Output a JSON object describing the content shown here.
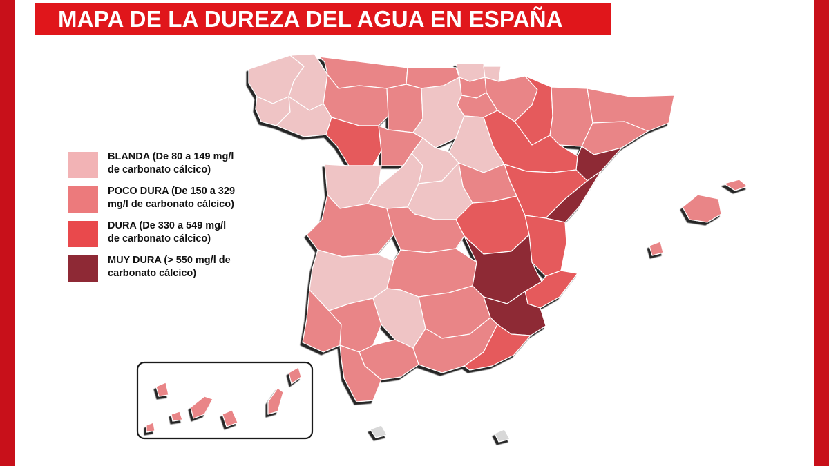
{
  "title": "MAPA DE LA DUREZA DEL AGUA EN ESPAÑA",
  "legend": [
    {
      "label": "BLANDA (De 80 a 149 mg/l\nde carbonato cálcico)",
      "color": "#f2b3b5"
    },
    {
      "label": "POCO DURA (De 150 a 329\nmg/l de carbonato cálcico)",
      "color": "#ec7a7c"
    },
    {
      "label": "DURA (De 330 a 549 mg/l\nde carbonato cálcico)",
      "color": "#e9494c"
    },
    {
      "label": "MUY DURA (> 550 mg/l de\ncarbonato cálcico)",
      "color": "#8e2935"
    }
  ],
  "colors": {
    "frame": "#c8101a",
    "title_bar": "#e0161b",
    "blanda": "#efc4c5",
    "poco_dura": "#e98587",
    "dura": "#e55a5c",
    "muy_dura": "#8e2935",
    "shadow": "#2b2b2b",
    "ceuta_melilla": "#d8d8d8"
  },
  "provinces": [
    {
      "name": "A Coruña",
      "class": "blanda"
    },
    {
      "name": "Lugo",
      "class": "blanda"
    },
    {
      "name": "Pontevedra",
      "class": "blanda"
    },
    {
      "name": "Ourense",
      "class": "blanda"
    },
    {
      "name": "Asturias",
      "class": "poco_dura"
    },
    {
      "name": "Cantabria",
      "class": "poco_dura"
    },
    {
      "name": "Bizkaia",
      "class": "blanda"
    },
    {
      "name": "Gipuzkoa",
      "class": "blanda"
    },
    {
      "name": "Araba/Álava",
      "class": "poco_dura"
    },
    {
      "name": "Navarra",
      "class": "poco_dura"
    },
    {
      "name": "La Rioja",
      "class": "poco_dura"
    },
    {
      "name": "Huesca",
      "class": "dura"
    },
    {
      "name": "Lleida",
      "class": "poco_dura"
    },
    {
      "name": "Girona",
      "class": "poco_dura"
    },
    {
      "name": "Barcelona",
      "class": "poco_dura"
    },
    {
      "name": "Tarragona",
      "class": "muy_dura"
    },
    {
      "name": "Zaragoza",
      "class": "dura"
    },
    {
      "name": "Teruel",
      "class": "dura"
    },
    {
      "name": "Castellón",
      "class": "muy_dura"
    },
    {
      "name": "León",
      "class": "poco_dura"
    },
    {
      "name": "Palencia",
      "class": "poco_dura"
    },
    {
      "name": "Burgos",
      "class": "blanda"
    },
    {
      "name": "Zamora",
      "class": "dura"
    },
    {
      "name": "Valladolid",
      "class": "poco_dura"
    },
    {
      "name": "Soria",
      "class": "blanda"
    },
    {
      "name": "Salamanca",
      "class": "blanda"
    },
    {
      "name": "Ávila",
      "class": "blanda"
    },
    {
      "name": "Segovia",
      "class": "blanda"
    },
    {
      "name": "Guadalajara",
      "class": "poco_dura"
    },
    {
      "name": "Madrid",
      "class": "blanda"
    },
    {
      "name": "Cuenca",
      "class": "dura"
    },
    {
      "name": "Cáceres",
      "class": "poco_dura"
    },
    {
      "name": "Toledo",
      "class": "poco_dura"
    },
    {
      "name": "Valencia",
      "class": "dura"
    },
    {
      "name": "Badajoz",
      "class": "blanda"
    },
    {
      "name": "Ciudad Real",
      "class": "poco_dura"
    },
    {
      "name": "Albacete",
      "class": "muy_dura"
    },
    {
      "name": "Alicante",
      "class": "dura"
    },
    {
      "name": "Huelva",
      "class": "poco_dura"
    },
    {
      "name": "Sevilla",
      "class": "poco_dura"
    },
    {
      "name": "Córdoba",
      "class": "blanda"
    },
    {
      "name": "Jaén",
      "class": "poco_dura"
    },
    {
      "name": "Murcia",
      "class": "muy_dura"
    },
    {
      "name": "Granada",
      "class": "poco_dura"
    },
    {
      "name": "Almería",
      "class": "dura"
    },
    {
      "name": "Málaga",
      "class": "poco_dura"
    },
    {
      "name": "Cádiz",
      "class": "poco_dura"
    },
    {
      "name": "Mallorca",
      "class": "poco_dura"
    },
    {
      "name": "Menorca",
      "class": "poco_dura"
    },
    {
      "name": "Ibiza y Formentera",
      "class": "poco_dura"
    },
    {
      "name": "Canarias",
      "class": "poco_dura"
    },
    {
      "name": "Ceuta",
      "class": "sin_dato"
    },
    {
      "name": "Melilla",
      "class": "sin_dato"
    }
  ]
}
